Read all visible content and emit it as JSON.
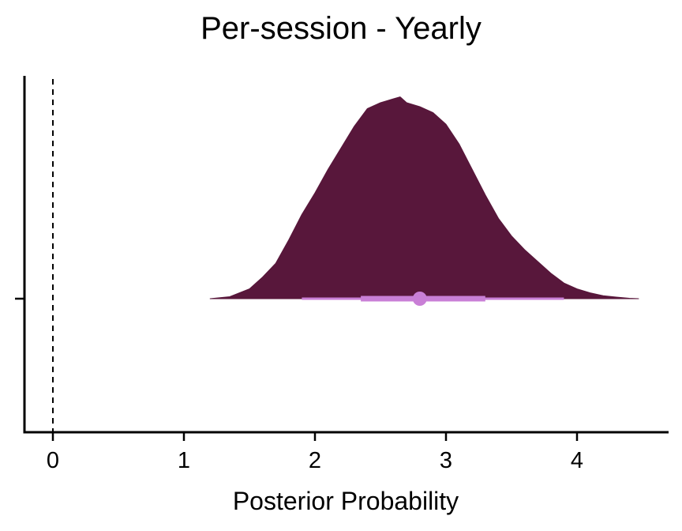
{
  "chart_data": {
    "type": "area",
    "subtype": "half-eye density with point interval",
    "title": "Per-session - Yearly",
    "xlabel": "Posterior Probability",
    "ylabel": "",
    "xlim": [
      -0.22,
      4.7
    ],
    "xticks": [
      0,
      1,
      2,
      3,
      4
    ],
    "tick_labels": [
      "0",
      "1",
      "2",
      "3",
      "4"
    ],
    "reference_line": {
      "x": 0,
      "style": "dashed"
    },
    "density": {
      "x": [
        1.2,
        1.35,
        1.5,
        1.6,
        1.7,
        1.8,
        1.9,
        2.0,
        2.1,
        2.2,
        2.3,
        2.4,
        2.5,
        2.6,
        2.65,
        2.7,
        2.8,
        2.9,
        3.0,
        3.1,
        3.2,
        3.3,
        3.4,
        3.5,
        3.6,
        3.7,
        3.8,
        3.9,
        4.0,
        4.1,
        4.2,
        4.3,
        4.4,
        4.47
      ],
      "y": [
        0.0,
        0.01,
        0.05,
        0.11,
        0.18,
        0.3,
        0.43,
        0.54,
        0.66,
        0.77,
        0.88,
        0.97,
        1.0,
        1.02,
        1.03,
        1.0,
        0.98,
        0.95,
        0.89,
        0.79,
        0.66,
        0.53,
        0.41,
        0.32,
        0.25,
        0.19,
        0.13,
        0.08,
        0.05,
        0.03,
        0.015,
        0.008,
        0.002,
        0.0
      ],
      "fill": "#58173b"
    },
    "interval": {
      "point": 2.8,
      "inner": [
        2.35,
        3.3
      ],
      "outer": [
        1.9,
        3.9
      ],
      "color": "#c97fd6"
    }
  }
}
